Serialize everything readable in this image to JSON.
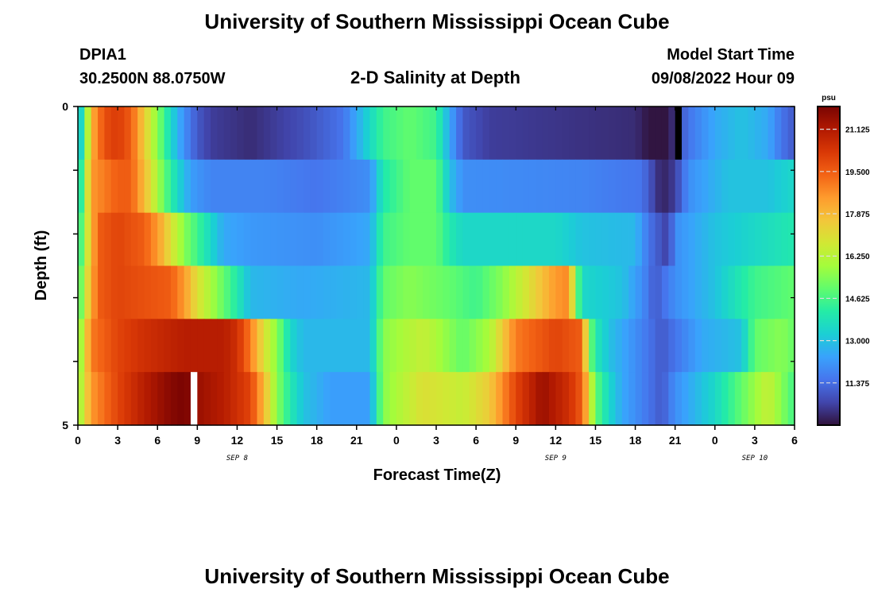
{
  "header": {
    "title": "University of Southern Mississippi Ocean Cube",
    "station_id": "DPIA1",
    "coordinates": "30.2500N  88.0750W",
    "plot_title": "2-D Salinity at Depth",
    "model_start_label": "Model Start Time",
    "model_start_value": "09/08/2022 Hour 09",
    "footer_title": "University of Southern Mississippi Ocean Cube"
  },
  "colors": {
    "colormap": [
      "#30123b",
      "#4145ab",
      "#4675ed",
      "#39a2fc",
      "#1bcfd4",
      "#24eca6",
      "#61fc6c",
      "#a4fc3b",
      "#d1e834",
      "#f3c63a",
      "#fe9b2d",
      "#f36315",
      "#d93806",
      "#b11901",
      "#7a0402"
    ]
  },
  "chart_data": {
    "type": "heatmap",
    "title": "2-D Salinity at Depth",
    "xlabel": "Forecast Time(Z)",
    "ylabel": "Depth (ft)",
    "units": "psu",
    "x_tick_labels": [
      "0",
      "3",
      "6",
      "9",
      "12",
      "15",
      "18",
      "21",
      "0",
      "3",
      "6",
      "9",
      "12",
      "15",
      "18",
      "21",
      "0",
      "3",
      "6"
    ],
    "x_range_hours": [
      0,
      54
    ],
    "date_labels": [
      {
        "label": "SEP 8",
        "hour": 12
      },
      {
        "label": "SEP 9",
        "hour": 36
      },
      {
        "label": "SEP 10",
        "hour": 51
      }
    ],
    "y_tick_labels": [
      "0",
      "5"
    ],
    "y_range": [
      0,
      5
    ],
    "colorbar_ticks": [
      21.125,
      19.5,
      17.875,
      16.25,
      14.625,
      13.0,
      11.375
    ],
    "colorbar_range": [
      9.75,
      22.0
    ],
    "layers": [
      {
        "keys": [
          [
            0,
            12.5
          ],
          [
            0.5,
            14.5
          ],
          [
            1,
            18
          ],
          [
            2,
            19.8
          ],
          [
            3,
            20.2
          ],
          [
            4,
            19.5
          ],
          [
            5,
            17.5
          ],
          [
            6,
            15.5
          ],
          [
            7,
            13.5
          ],
          [
            8,
            12
          ],
          [
            9,
            11
          ],
          [
            10,
            10.5
          ],
          [
            13,
            10.2
          ],
          [
            17,
            10.8
          ],
          [
            20,
            11.5
          ],
          [
            22,
            13.5
          ],
          [
            23,
            14.5
          ],
          [
            25,
            15
          ],
          [
            27,
            14.5
          ],
          [
            28,
            12.5
          ],
          [
            29,
            11
          ],
          [
            31,
            10.5
          ],
          [
            38,
            10.3
          ],
          [
            42,
            10.2
          ],
          [
            43,
            9.8
          ],
          [
            44.5,
            9.8
          ],
          [
            45,
            10.5
          ],
          [
            46,
            11.5
          ],
          [
            48,
            12.5
          ],
          [
            50,
            13
          ],
          [
            52,
            12.5
          ],
          [
            53,
            11.5
          ],
          [
            54,
            11
          ]
        ]
      },
      {
        "keys": [
          [
            0,
            13
          ],
          [
            0.5,
            15.5
          ],
          [
            1,
            18.5
          ],
          [
            3,
            19.5
          ],
          [
            4,
            19.5
          ],
          [
            5.5,
            17
          ],
          [
            6.5,
            15
          ],
          [
            7.5,
            13.5
          ],
          [
            8.5,
            12.3
          ],
          [
            10,
            11.8
          ],
          [
            14,
            11.8
          ],
          [
            18,
            11.5
          ],
          [
            22,
            12
          ],
          [
            23,
            14
          ],
          [
            25,
            15
          ],
          [
            27,
            15
          ],
          [
            28,
            13
          ],
          [
            29,
            12
          ],
          [
            38,
            11.8
          ],
          [
            42.5,
            11.5
          ],
          [
            44,
            10
          ],
          [
            45,
            10.5
          ],
          [
            46,
            12
          ],
          [
            49,
            13
          ],
          [
            52,
            13
          ],
          [
            54,
            13.5
          ]
        ]
      },
      {
        "keys": [
          [
            0,
            13.5
          ],
          [
            0.5,
            16
          ],
          [
            1.5,
            19.5
          ],
          [
            3,
            20
          ],
          [
            5,
            19.5
          ],
          [
            6,
            18.5
          ],
          [
            7,
            17
          ],
          [
            8,
            15.5
          ],
          [
            9,
            14.5
          ],
          [
            10,
            13.5
          ],
          [
            11,
            12.5
          ],
          [
            13,
            12.2
          ],
          [
            18,
            12
          ],
          [
            22,
            12.5
          ],
          [
            23,
            14.5
          ],
          [
            25,
            15
          ],
          [
            27,
            15
          ],
          [
            28,
            14
          ],
          [
            29,
            13.5
          ],
          [
            36,
            13.5
          ],
          [
            38,
            13
          ],
          [
            42,
            12.8
          ],
          [
            43,
            11.5
          ],
          [
            44.5,
            10.5
          ],
          [
            45,
            12
          ],
          [
            48,
            13
          ],
          [
            51,
            13.5
          ],
          [
            54,
            14
          ]
        ]
      },
      {
        "keys": [
          [
            0,
            14
          ],
          [
            0.5,
            16.5
          ],
          [
            1.5,
            19.5
          ],
          [
            3,
            20
          ],
          [
            7,
            19.5
          ],
          [
            8,
            18.5
          ],
          [
            9,
            17
          ],
          [
            10,
            16
          ],
          [
            11,
            15
          ],
          [
            12,
            14
          ],
          [
            13,
            12.8
          ],
          [
            17,
            12.5
          ],
          [
            22,
            12.8
          ],
          [
            23,
            15
          ],
          [
            25,
            15.5
          ],
          [
            28,
            15
          ],
          [
            30,
            14.5
          ],
          [
            32,
            15.5
          ],
          [
            34,
            17
          ],
          [
            36,
            18.5
          ],
          [
            37,
            18.8
          ],
          [
            37.5,
            15.5
          ],
          [
            38,
            13.5
          ],
          [
            41,
            13
          ],
          [
            42.5,
            12
          ],
          [
            43.5,
            11
          ],
          [
            45,
            12
          ],
          [
            48,
            13
          ],
          [
            51,
            14.5
          ],
          [
            54,
            15
          ]
        ]
      },
      {
        "keys": [
          [
            0,
            15
          ],
          [
            1,
            19
          ],
          [
            3,
            20
          ],
          [
            5,
            20.5
          ],
          [
            8,
            21
          ],
          [
            11,
            21
          ],
          [
            12,
            20.5
          ],
          [
            13,
            19
          ],
          [
            14,
            17
          ],
          [
            15,
            15.5
          ],
          [
            16,
            13.5
          ],
          [
            17,
            12.8
          ],
          [
            22,
            12.8
          ],
          [
            23,
            15.5
          ],
          [
            26,
            16.5
          ],
          [
            29,
            15
          ],
          [
            31,
            16
          ],
          [
            33,
            19
          ],
          [
            36,
            20
          ],
          [
            38,
            19.5
          ],
          [
            38.5,
            15.5
          ],
          [
            39,
            14
          ],
          [
            40,
            13
          ],
          [
            41,
            12.5
          ],
          [
            43,
            11.5
          ],
          [
            44,
            11
          ],
          [
            45,
            11.5
          ],
          [
            47,
            12.5
          ],
          [
            50,
            13
          ],
          [
            51,
            15
          ],
          [
            53,
            15.5
          ],
          [
            54,
            15
          ]
        ]
      },
      {
        "keys": [
          [
            0,
            15.5
          ],
          [
            1,
            18.5
          ],
          [
            3,
            20
          ],
          [
            5,
            21
          ],
          [
            7,
            21.8
          ],
          [
            8,
            22
          ],
          [
            9,
            21.5
          ],
          [
            11,
            21
          ],
          [
            13,
            20
          ],
          [
            14,
            18
          ],
          [
            15,
            15.5
          ],
          [
            16,
            14
          ],
          [
            17,
            13
          ],
          [
            19,
            12.3
          ],
          [
            22,
            12.3
          ],
          [
            23,
            15.5
          ],
          [
            26,
            17
          ],
          [
            29,
            16.5
          ],
          [
            31,
            17.5
          ],
          [
            33,
            20
          ],
          [
            35,
            21.5
          ],
          [
            37,
            20.5
          ],
          [
            38,
            19.5
          ],
          [
            39,
            15
          ],
          [
            40,
            13.5
          ],
          [
            41,
            12.5
          ],
          [
            43,
            11.5
          ],
          [
            44,
            11
          ],
          [
            45,
            12
          ],
          [
            48,
            13.5
          ],
          [
            50,
            15
          ],
          [
            52,
            16.5
          ],
          [
            53,
            15.5
          ],
          [
            54,
            14.5
          ]
        ]
      }
    ],
    "missing_cells": [
      {
        "layer": 0,
        "hour": 45,
        "color": "#000000"
      },
      {
        "layer": 5,
        "hour": 8.5,
        "color": "#ffffff"
      }
    ]
  }
}
